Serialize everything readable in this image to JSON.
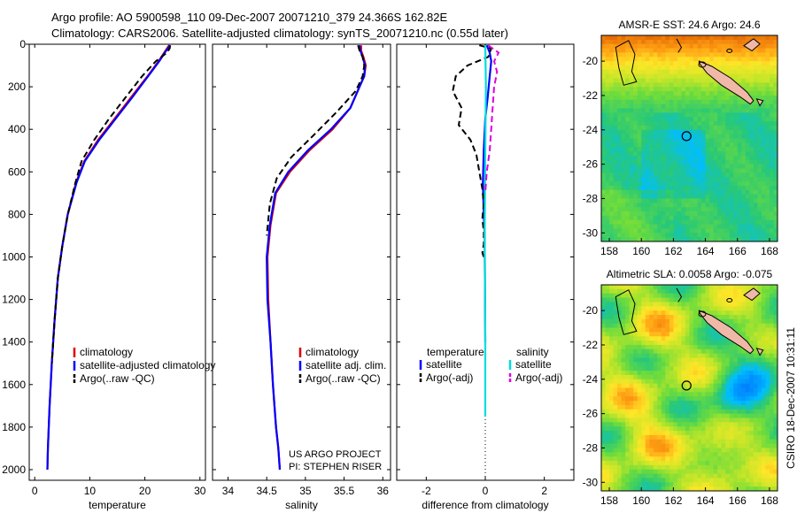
{
  "header": {
    "line1": "Argo profile: AO 5900598_110 09-Dec-2007 20071210_379 24.366S 162.82E",
    "line2": "Climatology: CARS2006. Satellite-adjusted climatology: synTS_20071210.nc (0.55d later)"
  },
  "side_text": "CSIRO 18-Dec-2007 10:31:11",
  "colors": {
    "climatology": "#dd0000",
    "satellite": "#0000ff",
    "argo": "#000000",
    "sat_salinity": "#00dddd",
    "argo_salinity": "#dd00dd"
  },
  "chart_data": [
    {
      "type": "line",
      "xlabel": "temperature",
      "ylabel": "",
      "xlim": [
        -1,
        31
      ],
      "ylim": [
        2050,
        0
      ],
      "y_inverted": true,
      "xticks": [
        "0",
        "10",
        "20",
        "30"
      ],
      "yticks": [
        "0",
        "200",
        "400",
        "600",
        "800",
        "1000",
        "1200",
        "1400",
        "1600",
        "1800",
        "2000"
      ],
      "legend": [
        "climatology",
        "satellite-adjusted climatology",
        "Argo(..raw -QC)"
      ],
      "series": [
        {
          "name": "climatology",
          "style": "solid",
          "color": "#dd0000",
          "x": [
            24.4,
            24.0,
            23.5,
            22.5,
            20.5,
            17.5,
            14.5,
            11.5,
            9.0,
            7.5,
            6.0,
            5.0,
            4.2,
            3.6,
            3.1,
            2.7,
            2.4,
            2.3
          ],
          "y": [
            5,
            20,
            40,
            80,
            150,
            250,
            350,
            450,
            550,
            650,
            800,
            950,
            1100,
            1300,
            1500,
            1700,
            1900,
            2000
          ]
        },
        {
          "name": "satellite-adjusted climatology",
          "style": "solid",
          "color": "#0000ff",
          "x": [
            24.5,
            24.2,
            23.6,
            22.6,
            20.6,
            17.7,
            14.7,
            11.7,
            9.1,
            7.6,
            6.0,
            5.0,
            4.2,
            3.6,
            3.1,
            2.7,
            2.4,
            2.3
          ],
          "y": [
            5,
            20,
            40,
            80,
            150,
            250,
            350,
            450,
            550,
            650,
            800,
            950,
            1100,
            1300,
            1500,
            1700,
            1900,
            2000
          ]
        },
        {
          "name": "Argo(..raw -QC)",
          "style": "dashed",
          "color": "#000000",
          "x": [
            24.6,
            24.5,
            24.0,
            22.0,
            19.5,
            16.5,
            13.5,
            10.8,
            8.5,
            7.4,
            6.0,
            5.0,
            4.2,
            3.6,
            3.1
          ],
          "y": [
            5,
            20,
            40,
            80,
            150,
            250,
            350,
            450,
            550,
            650,
            800,
            950,
            1100,
            1300,
            1500
          ]
        }
      ]
    },
    {
      "type": "line",
      "xlabel": "salinity",
      "xlim": [
        33.8,
        36.1
      ],
      "ylim": [
        2050,
        0
      ],
      "y_inverted": true,
      "xticks": [
        "34",
        "34.5",
        "35",
        "35.5",
        "36"
      ],
      "legend": [
        "climatology",
        "satellite adj. clim.",
        "Argo(..raw -QC)"
      ],
      "annotation": [
        "US ARGO PROJECT",
        "PI: STEPHEN RISER"
      ],
      "series": [
        {
          "name": "climatology",
          "style": "solid",
          "color": "#dd0000",
          "x": [
            35.72,
            35.72,
            35.75,
            35.78,
            35.76,
            35.7,
            35.58,
            35.35,
            35.05,
            34.8,
            34.62,
            34.55,
            34.51,
            34.52,
            34.55,
            34.58,
            34.62,
            34.65,
            34.67
          ],
          "y": [
            5,
            30,
            60,
            100,
            150,
            200,
            300,
            400,
            500,
            600,
            700,
            850,
            1000,
            1200,
            1400,
            1600,
            1800,
            1900,
            2000
          ]
        },
        {
          "name": "satellite adj. clim.",
          "style": "solid",
          "color": "#0000ff",
          "x": [
            35.7,
            35.71,
            35.74,
            35.77,
            35.76,
            35.7,
            35.58,
            35.33,
            35.03,
            34.78,
            34.61,
            34.54,
            34.5,
            34.51,
            34.55,
            34.58,
            34.62,
            34.65,
            34.67
          ],
          "y": [
            5,
            30,
            60,
            100,
            150,
            200,
            300,
            400,
            500,
            600,
            700,
            850,
            1000,
            1200,
            1400,
            1600,
            1800,
            1900,
            2000
          ]
        },
        {
          "name": "Argo(..raw -QC)",
          "style": "dashed",
          "color": "#000000",
          "x": [
            35.68,
            35.7,
            35.74,
            35.76,
            35.74,
            35.65,
            35.4,
            35.1,
            34.82,
            34.63,
            34.54,
            34.5
          ],
          "y": [
            5,
            30,
            60,
            100,
            150,
            220,
            320,
            430,
            530,
            630,
            750,
            900
          ]
        }
      ]
    },
    {
      "type": "line",
      "xlabel": "difference from climatology",
      "xlim": [
        -3,
        3
      ],
      "ylim": [
        2050,
        0
      ],
      "y_inverted": true,
      "xticks": [
        "-2",
        "0",
        "2"
      ],
      "legend_temperature": [
        "temperature",
        "satellite",
        "Argo(-adj)"
      ],
      "legend_salinity": [
        "salinity",
        "satellite",
        "Argo(-adj)"
      ],
      "series": [
        {
          "name": "temperature satellite",
          "style": "solid",
          "color": "#0000ff",
          "x": [
            0.05,
            0.15,
            0.2,
            0.15,
            0.08,
            0.0,
            -0.05,
            -0.08,
            -0.05,
            -0.02,
            0.0
          ],
          "y": [
            5,
            40,
            80,
            150,
            250,
            350,
            500,
            650,
            800,
            900,
            1400
          ]
        },
        {
          "name": "temperature Argo(-adj)",
          "style": "dashed",
          "color": "#000000",
          "x": [
            -0.2,
            0.2,
            0.1,
            -0.6,
            -1.0,
            -1.1,
            -0.8,
            -0.9,
            -0.5,
            -0.3,
            -0.2,
            -0.1,
            -0.05,
            -0.1,
            -0.05,
            -0.05,
            -0.1,
            -0.05
          ],
          "y": [
            5,
            20,
            60,
            100,
            150,
            220,
            300,
            380,
            450,
            520,
            600,
            680,
            750,
            820,
            880,
            940,
            980,
            1000
          ]
        },
        {
          "name": "salinity satellite",
          "style": "solid",
          "color": "#00dddd",
          "x": [
            0.0,
            0.02,
            0.0,
            -0.02,
            0.0,
            0.0
          ],
          "y": [
            5,
            200,
            500,
            900,
            1400,
            1750
          ]
        },
        {
          "name": "salinity Argo(-adj)",
          "style": "dashed",
          "color": "#dd00dd",
          "x": [
            0.1,
            0.45,
            0.3,
            0.4,
            0.3,
            0.25,
            0.2,
            0.15,
            0.05,
            0.0
          ],
          "y": [
            5,
            40,
            80,
            130,
            200,
            300,
            400,
            500,
            600,
            700
          ]
        }
      ]
    },
    {
      "type": "heatmap",
      "title": "AMSR-E SST: 24.6 Argo: 24.6",
      "xlim": [
        157.5,
        168.5
      ],
      "ylim": [
        -30.5,
        -18.5
      ],
      "xticks": [
        "158",
        "160",
        "162",
        "164",
        "166",
        "168"
      ],
      "yticks": [
        "-20",
        "-22",
        "-24",
        "-26",
        "-28",
        "-30"
      ],
      "marker": {
        "lon": 162.82,
        "lat": -24.366
      }
    },
    {
      "type": "heatmap",
      "title": "Altimetric SLA: 0.0058 Argo: -0.075",
      "xlim": [
        157.5,
        168.5
      ],
      "ylim": [
        -30.5,
        -18.5
      ],
      "xticks": [
        "158",
        "160",
        "162",
        "164",
        "166",
        "168"
      ],
      "yticks": [
        "-20",
        "-22",
        "-24",
        "-26",
        "-28",
        "-30"
      ],
      "marker": {
        "lon": 162.82,
        "lat": -24.366
      }
    }
  ]
}
